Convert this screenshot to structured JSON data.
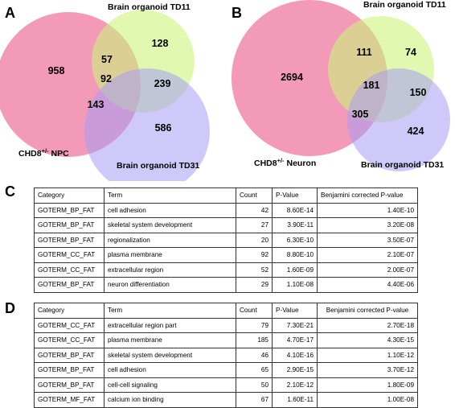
{
  "panels": {
    "a": {
      "letter": "A",
      "label_npc": "CHD8",
      "label_npc_sup": "+/-",
      "label_npc_tail": " NPC",
      "label_td11": "Brain organoid TD11",
      "label_td31": "Brain organoid TD31",
      "counts": {
        "only_left": "958",
        "only_top": "128",
        "left_top": "57",
        "center": "92",
        "top_bottom": "239",
        "left_bottom": "143",
        "only_bottom": "586"
      }
    },
    "b": {
      "letter": "B",
      "label_neuron": "CHD8",
      "label_neuron_sup": "+/-",
      "label_neuron_tail": " Neuron",
      "label_td11": "Brain organoid TD11",
      "label_td31": "Brain organoid TD31",
      "counts": {
        "only_left": "2694",
        "only_top": "74",
        "left_top": "111",
        "center": "181",
        "top_bottom": "150",
        "left_bottom": "305",
        "only_bottom": "424"
      }
    },
    "c": {
      "letter": "C",
      "headers": [
        "Category",
        "Term",
        "Count",
        "P-Value",
        "Benjamini corrected P-value"
      ],
      "rows": [
        [
          "GOTERM_BP_FAT",
          "cell adhesion",
          "42",
          "8.60E-14",
          "1.40E-10"
        ],
        [
          "GOTERM_BP_FAT",
          "skeletal system development",
          "27",
          "3.90E-11",
          "3.20E-08"
        ],
        [
          "GOTERM_BP_FAT",
          "regionalization",
          "20",
          "6.30E-10",
          "3.50E-07"
        ],
        [
          "GOTERM_CC_FAT",
          "plasma membrane",
          "92",
          "8.80E-10",
          "2.10E-07"
        ],
        [
          "GOTERM_CC_FAT",
          "extracellular region",
          "52",
          "1.60E-09",
          "2.00E-07"
        ],
        [
          "GOTERM_BP_FAT",
          "neuron differentiation",
          "29",
          "1.10E-08",
          "4.40E-06"
        ]
      ]
    },
    "d": {
      "letter": "D",
      "headers": [
        "Category",
        "Term",
        "Count",
        "P-Value",
        "Benjamini corrected P-value"
      ],
      "rows": [
        [
          "GOTERM_CC_FAT",
          "extracellular region part",
          "79",
          "7.30E-21",
          "2.70E-18"
        ],
        [
          "GOTERM_CC_FAT",
          "plasma membrane",
          "185",
          "4.70E-17",
          "4.30E-15"
        ],
        [
          "GOTERM_BP_FAT",
          "skeletal system development",
          "46",
          "4.10E-16",
          "1.10E-12"
        ],
        [
          "GOTERM_BP_FAT",
          "cell adhesion",
          "65",
          "2.90E-15",
          "3.70E-12"
        ],
        [
          "GOTERM_BP_FAT",
          "cell-cell signaling",
          "50",
          "2.10E-12",
          "1.80E-09"
        ],
        [
          "GOTERM_MF_FAT",
          "calcium ion binding",
          "67",
          "1.60E-11",
          "1.00E-08"
        ]
      ]
    }
  },
  "colors": {
    "pink": "#ec6f98",
    "green": "#cdf47d",
    "purple": "#a79df4"
  }
}
